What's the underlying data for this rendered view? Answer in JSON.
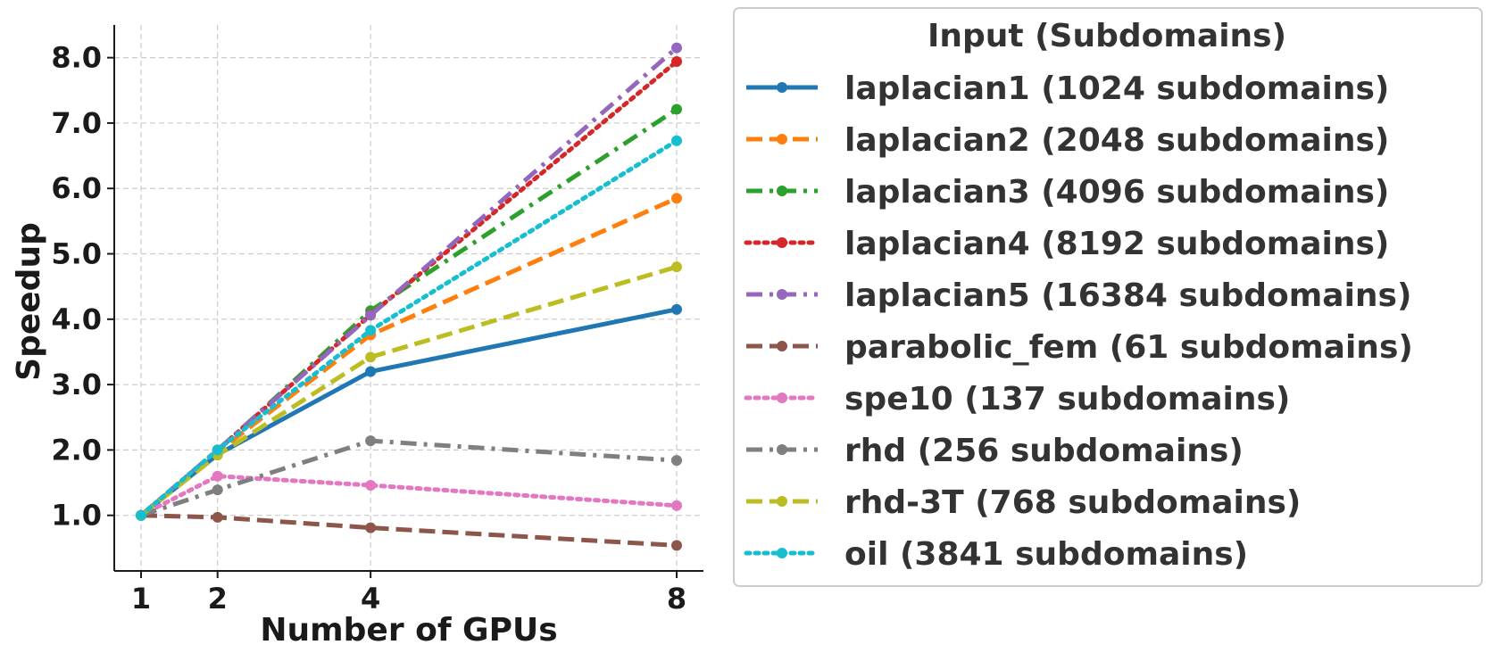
{
  "chart_data": {
    "type": "line",
    "title": "",
    "xlabel": "Number of GPUs",
    "ylabel": "Speedup",
    "x": [
      1,
      2,
      4,
      8
    ],
    "xticks": [
      "1",
      "2",
      "4",
      "8"
    ],
    "xlim": [
      0.65,
      8.35
    ],
    "ylim": [
      0.15,
      8.5
    ],
    "yticks": [
      "1.0",
      "2.0",
      "3.0",
      "4.0",
      "5.0",
      "6.0",
      "7.0",
      "8.0"
    ],
    "grid": true,
    "legend": {
      "title": "Input (Subdomains)",
      "placement": "outside-right"
    },
    "series": [
      {
        "name": "laplacian1 (1024 subdomains)",
        "color": "#1f77b4",
        "style": "solid",
        "values": [
          1.0,
          1.93,
          3.2,
          4.15
        ]
      },
      {
        "name": "laplacian2 (2048 subdomains)",
        "color": "#ff7f0e",
        "style": "dashed",
        "values": [
          1.0,
          1.97,
          3.76,
          5.85
        ]
      },
      {
        "name": "laplacian3 (4096 subdomains)",
        "color": "#2ca02c",
        "style": "dashdot",
        "values": [
          1.0,
          1.99,
          4.13,
          7.21
        ]
      },
      {
        "name": "laplacian4 (8192 subdomains)",
        "color": "#d62728",
        "style": "dotted",
        "values": [
          1.0,
          2.0,
          4.07,
          7.94
        ]
      },
      {
        "name": "laplacian5 (16384 subdomains)",
        "color": "#9467bd",
        "style": "dashdot",
        "values": [
          1.0,
          2.0,
          4.06,
          8.15
        ]
      },
      {
        "name": "parabolic_fem (61 subdomains)",
        "color": "#8c564b",
        "style": "dashed",
        "values": [
          1.0,
          0.97,
          0.81,
          0.54
        ]
      },
      {
        "name": "spe10 (137 subdomains)",
        "color": "#e377c2",
        "style": "dotted",
        "values": [
          1.0,
          1.6,
          1.46,
          1.15
        ]
      },
      {
        "name": "rhd (256 subdomains)",
        "color": "#7f7f7f",
        "style": "dashdot",
        "values": [
          1.0,
          1.39,
          2.14,
          1.84
        ]
      },
      {
        "name": "rhd-3T (768 subdomains)",
        "color": "#bcbd22",
        "style": "dashed",
        "values": [
          1.0,
          1.92,
          3.42,
          4.8
        ]
      },
      {
        "name": "oil (3841 subdomains)",
        "color": "#17becf",
        "style": "dotted",
        "values": [
          1.0,
          2.0,
          3.83,
          6.73
        ]
      }
    ]
  }
}
